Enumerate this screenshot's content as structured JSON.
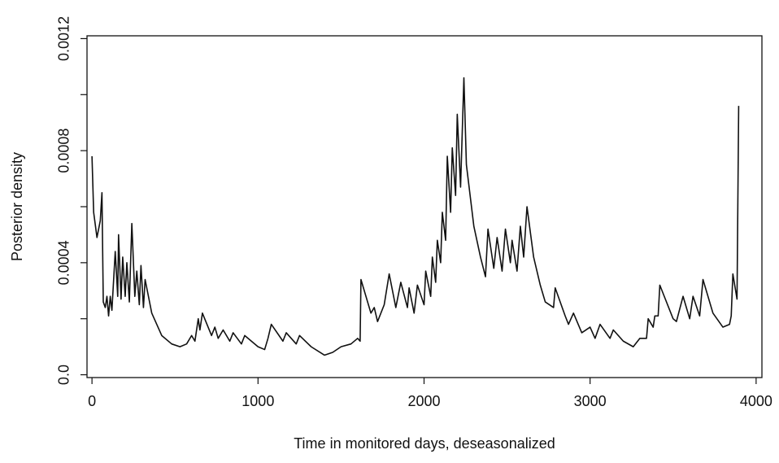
{
  "chart_data": {
    "type": "line",
    "x_label": "Time in monitored days, deseasonalized",
    "y_label": "Posterior density",
    "xlim": [
      -30,
      4035
    ],
    "ylim": [
      -1e-05,
      0.00121
    ],
    "xticks": [
      0,
      1000,
      2000,
      3000,
      4000
    ],
    "yticks": [
      {
        "value": 0,
        "label": "0.0"
      },
      0.0004,
      0.0008,
      0.0012
    ],
    "yminor_ticks": [
      0.0002,
      0.0006,
      0.001
    ],
    "series": [
      {
        "color": "#111111",
        "x": [
          0,
          10,
          30,
          50,
          60,
          68,
          80,
          90,
          100,
          110,
          120,
          140,
          155,
          160,
          175,
          185,
          200,
          210,
          225,
          240,
          258,
          270,
          285,
          295,
          310,
          320,
          360,
          420,
          480,
          530,
          570,
          600,
          620,
          640,
          650,
          665,
          720,
          740,
          760,
          790,
          830,
          850,
          900,
          920,
          1000,
          1040,
          1060,
          1080,
          1150,
          1170,
          1230,
          1250,
          1320,
          1400,
          1450,
          1500,
          1560,
          1600,
          1615,
          1620,
          1680,
          1700,
          1720,
          1760,
          1790,
          1830,
          1860,
          1900,
          1910,
          1940,
          1960,
          2000,
          2010,
          2040,
          2050,
          2070,
          2080,
          2100,
          2110,
          2130,
          2140,
          2160,
          2170,
          2190,
          2200,
          2220,
          2240,
          2255,
          2300,
          2340,
          2370,
          2385,
          2420,
          2440,
          2470,
          2490,
          2520,
          2530,
          2560,
          2580,
          2600,
          2620,
          2660,
          2700,
          2730,
          2780,
          2790,
          2850,
          2870,
          2900,
          2950,
          3000,
          3030,
          3060,
          3120,
          3140,
          3200,
          3260,
          3300,
          3340,
          3350,
          3380,
          3390,
          3410,
          3420,
          3500,
          3520,
          3560,
          3600,
          3620,
          3660,
          3680,
          3740,
          3800,
          3840,
          3850,
          3860,
          3885,
          3895
        ],
        "values": [
          0.00078,
          0.00058,
          0.00049,
          0.00055,
          0.00065,
          0.00026,
          0.00024,
          0.00028,
          0.00021,
          0.00028,
          0.00023,
          0.00044,
          0.00028,
          0.0005,
          0.00027,
          0.00042,
          0.00028,
          0.0004,
          0.00026,
          0.00054,
          0.00028,
          0.00037,
          0.00025,
          0.00039,
          0.00024,
          0.00034,
          0.00022,
          0.00014,
          0.00011,
          0.0001,
          0.00011,
          0.00014,
          0.00012,
          0.0002,
          0.00016,
          0.00022,
          0.00014,
          0.00017,
          0.00013,
          0.00016,
          0.00012,
          0.00015,
          0.00011,
          0.00014,
          0.0001,
          9e-05,
          0.00013,
          0.00018,
          0.00012,
          0.00015,
          0.00011,
          0.00014,
          0.0001,
          7e-05,
          8e-05,
          0.0001,
          0.00011,
          0.00013,
          0.00012,
          0.00034,
          0.00022,
          0.00024,
          0.00019,
          0.00025,
          0.00036,
          0.00024,
          0.00033,
          0.00024,
          0.00031,
          0.00022,
          0.00032,
          0.00025,
          0.00037,
          0.00028,
          0.00042,
          0.00033,
          0.00048,
          0.0004,
          0.00058,
          0.00048,
          0.00078,
          0.00058,
          0.00081,
          0.00064,
          0.00093,
          0.00067,
          0.00106,
          0.00075,
          0.00053,
          0.00042,
          0.00035,
          0.00052,
          0.00038,
          0.00049,
          0.00037,
          0.00052,
          0.0004,
          0.00048,
          0.00037,
          0.00053,
          0.00042,
          0.0006,
          0.00042,
          0.00032,
          0.00026,
          0.00024,
          0.00031,
          0.00021,
          0.00018,
          0.00022,
          0.00015,
          0.00017,
          0.00013,
          0.00018,
          0.00013,
          0.00016,
          0.00012,
          0.0001,
          0.00013,
          0.00013,
          0.0002,
          0.00017,
          0.00021,
          0.00021,
          0.00032,
          0.0002,
          0.00019,
          0.00028,
          0.0002,
          0.00028,
          0.00021,
          0.00034,
          0.00022,
          0.00017,
          0.00018,
          0.00021,
          0.00036,
          0.00027,
          0.00096
        ]
      }
    ]
  }
}
